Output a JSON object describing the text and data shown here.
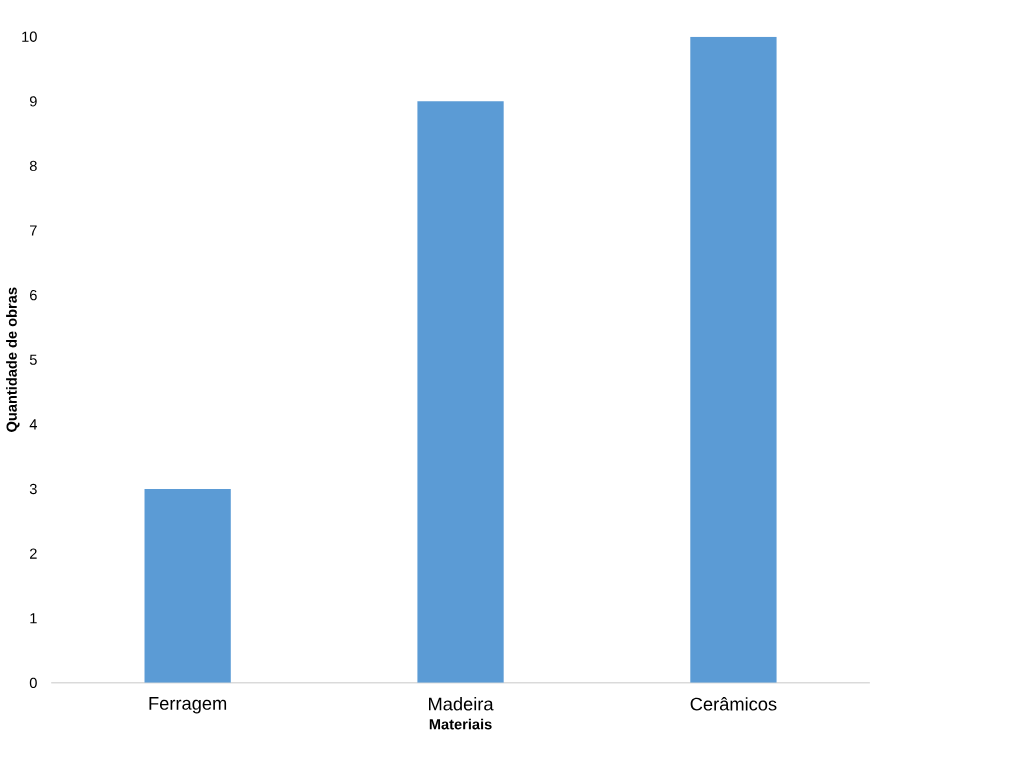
{
  "chart_data": {
    "type": "bar",
    "xlabel": "Materiais",
    "ylabel": "Quantidade de obras",
    "categories": [
      "Ferragem",
      "Madeira",
      "Cerâmicos"
    ],
    "values": [
      3,
      9,
      10
    ],
    "color": "#5b9bd5",
    "ylim": [
      0,
      10
    ],
    "yticks": [
      0,
      1,
      2,
      3,
      4,
      5,
      6,
      7,
      8,
      9,
      10
    ]
  }
}
